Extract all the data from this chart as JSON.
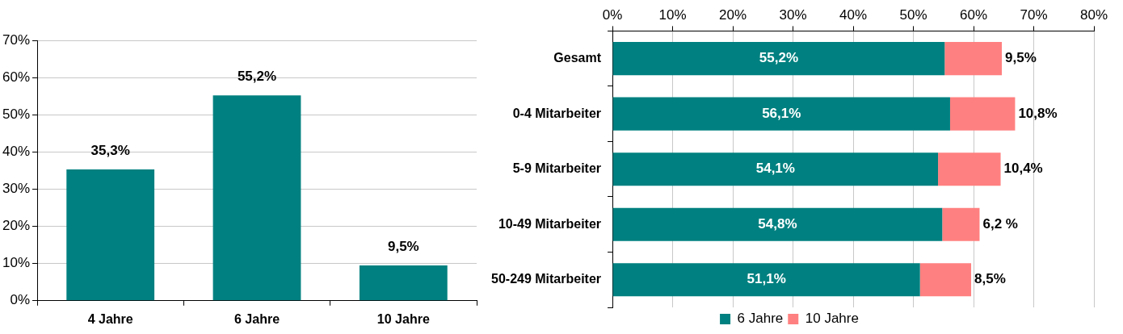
{
  "chart_data": [
    {
      "type": "bar",
      "categories": [
        "4 Jahre",
        "6 Jahre",
        "10 Jahre"
      ],
      "values": [
        35.3,
        55.2,
        9.5
      ],
      "color": "#008080",
      "value_labels": [
        "35,3%",
        "55,2%",
        "9,5%"
      ],
      "ylim": [
        0,
        70
      ],
      "yticks": [
        {
          "value": 0,
          "label": "0%"
        },
        {
          "value": 10,
          "label": "10%"
        },
        {
          "value": 20,
          "label": "20%"
        },
        {
          "value": 30,
          "label": "30%"
        },
        {
          "value": 40,
          "label": "40%"
        },
        {
          "value": 50,
          "label": "50%"
        },
        {
          "value": 60,
          "label": "60%"
        },
        {
          "value": 70,
          "label": "70%"
        }
      ],
      "grid": "y",
      "legend": false
    },
    {
      "type": "bar",
      "orientation": "horizontal",
      "stacked": true,
      "categories": [
        "Gesamt",
        "0-4 Mitarbeiter",
        "5-9 Mitarbeiter",
        "10-49 Mitarbeiter",
        "50-249 Mitarbeiter"
      ],
      "series": [
        {
          "name": "6 Jahre",
          "color": "#008080",
          "values": [
            55.2,
            56.1,
            54.1,
            54.8,
            51.1
          ],
          "value_labels": [
            "55,2%",
            "56,1%",
            "54,1%",
            "54,8%",
            "51,1%"
          ]
        },
        {
          "name": "10 Jahre",
          "color": "#ff8080",
          "values": [
            9.5,
            10.8,
            10.4,
            6.2,
            8.5
          ],
          "value_labels": [
            "9,5%",
            "10,8%",
            "10,4%",
            "6,2 %",
            "8,5%"
          ]
        }
      ],
      "xlim": [
        0,
        80
      ],
      "xticks": [
        {
          "value": 0,
          "label": "0%"
        },
        {
          "value": 10,
          "label": "10%"
        },
        {
          "value": 20,
          "label": "20%"
        },
        {
          "value": 30,
          "label": "30%"
        },
        {
          "value": 40,
          "label": "40%"
        },
        {
          "value": 50,
          "label": "50%"
        },
        {
          "value": 60,
          "label": "60%"
        },
        {
          "value": 70,
          "label": "70%"
        },
        {
          "value": 80,
          "label": "80%"
        }
      ],
      "grid": "x",
      "legend": "bottom"
    }
  ]
}
